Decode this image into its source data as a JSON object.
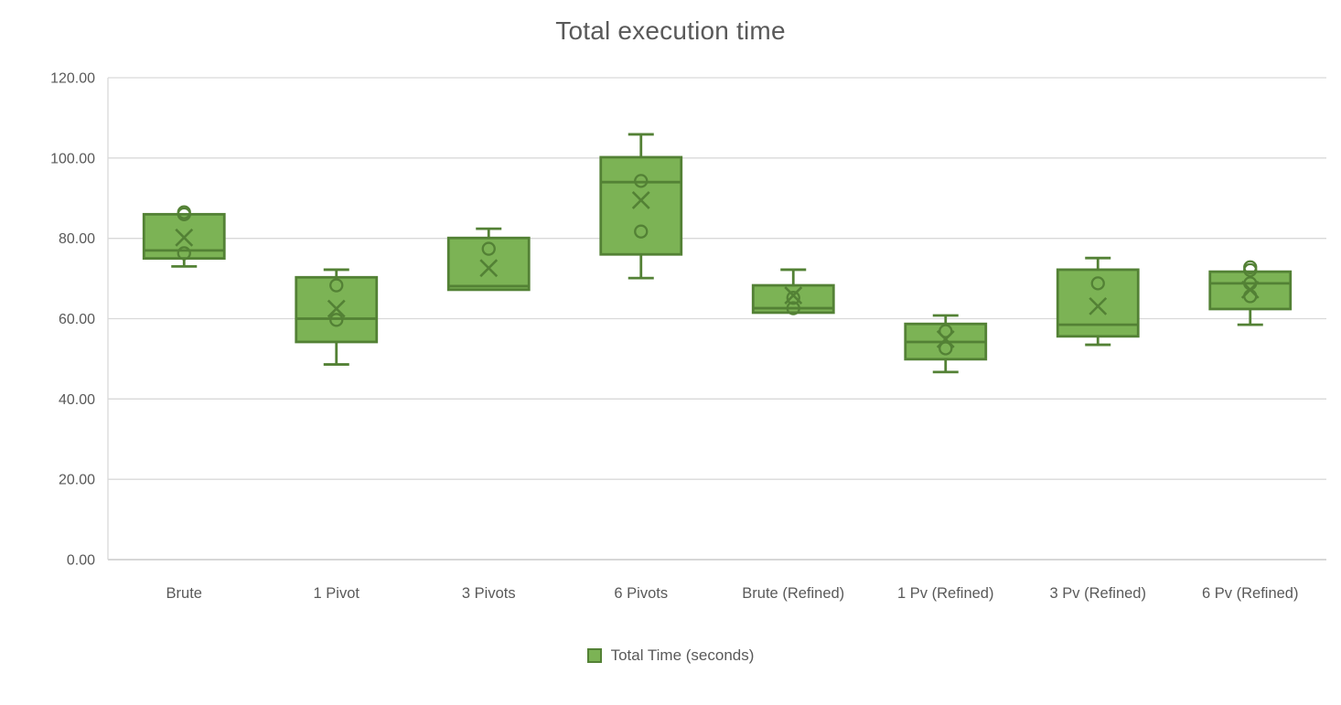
{
  "chart_data": {
    "type": "box",
    "title": "Total execution time",
    "categories": [
      "Brute",
      "1 Pivot",
      "3 Pivots",
      "6 Pivots",
      "Brute (Refined)",
      "1 Pv (Refined)",
      "3 Pv (Refined)",
      "6 Pv (Refined)"
    ],
    "series": [
      {
        "name": "Total Time (seconds)",
        "boxes": [
          {
            "category": "Brute",
            "whisker_low": 73.0,
            "q1": 75.0,
            "median": 77.0,
            "q3": 86.0,
            "whisker_high": 86.0,
            "mean": 80.2,
            "points": [
              86.5,
              86.0,
              76.3
            ]
          },
          {
            "category": "1 Pivot",
            "whisker_low": 48.6,
            "q1": 54.2,
            "median": 60.0,
            "q3": 70.3,
            "whisker_high": 72.2,
            "mean": 62.5,
            "points": [
              68.3,
              59.7
            ]
          },
          {
            "category": "3 Pivots",
            "whisker_low": 67.2,
            "q1": 67.2,
            "median": 68.1,
            "q3": 80.1,
            "whisker_high": 82.4,
            "mean": 72.6,
            "points": [
              77.4
            ]
          },
          {
            "category": "6 Pivots",
            "whisker_low": 70.1,
            "q1": 76.0,
            "median": 94.0,
            "q3": 100.2,
            "whisker_high": 105.9,
            "mean": 89.5,
            "points": [
              94.3,
              81.7
            ]
          },
          {
            "category": "Brute (Refined)",
            "whisker_low": 61.5,
            "q1": 61.5,
            "median": 62.6,
            "q3": 68.3,
            "whisker_high": 72.2,
            "mean": 65.8,
            "points": [
              65.2,
              62.6
            ]
          },
          {
            "category": "1 Pv (Refined)",
            "whisker_low": 46.7,
            "q1": 49.9,
            "median": 54.2,
            "q3": 58.7,
            "whisker_high": 60.8,
            "mean": 54.9,
            "points": [
              56.9,
              52.6
            ]
          },
          {
            "category": "3 Pv (Refined)",
            "whisker_low": 53.5,
            "q1": 55.6,
            "median": 58.5,
            "q3": 72.2,
            "whisker_high": 75.1,
            "mean": 63.1,
            "points": [
              68.8
            ]
          },
          {
            "category": "6 Pv (Refined)",
            "whisker_low": 58.5,
            "q1": 62.4,
            "median": 68.8,
            "q3": 71.7,
            "whisker_high": 71.7,
            "mean": 67.2,
            "points": [
              72.8,
              72.1,
              68.8,
              65.6
            ]
          }
        ]
      }
    ],
    "y_axis": {
      "min": 0,
      "max": 120,
      "tick_step": 20,
      "tick_labels": [
        "0.00",
        "20.00",
        "40.00",
        "60.00",
        "80.00",
        "100.00",
        "120.00"
      ]
    },
    "grid": true,
    "legend_position": "bottom",
    "colors": {
      "box_fill": "#7CB355",
      "box_stroke": "#538135",
      "marker_stroke": "#538135",
      "grid_line": "#D9D9D9",
      "axis_line": "#BFBFBF",
      "text": "#595959"
    }
  }
}
